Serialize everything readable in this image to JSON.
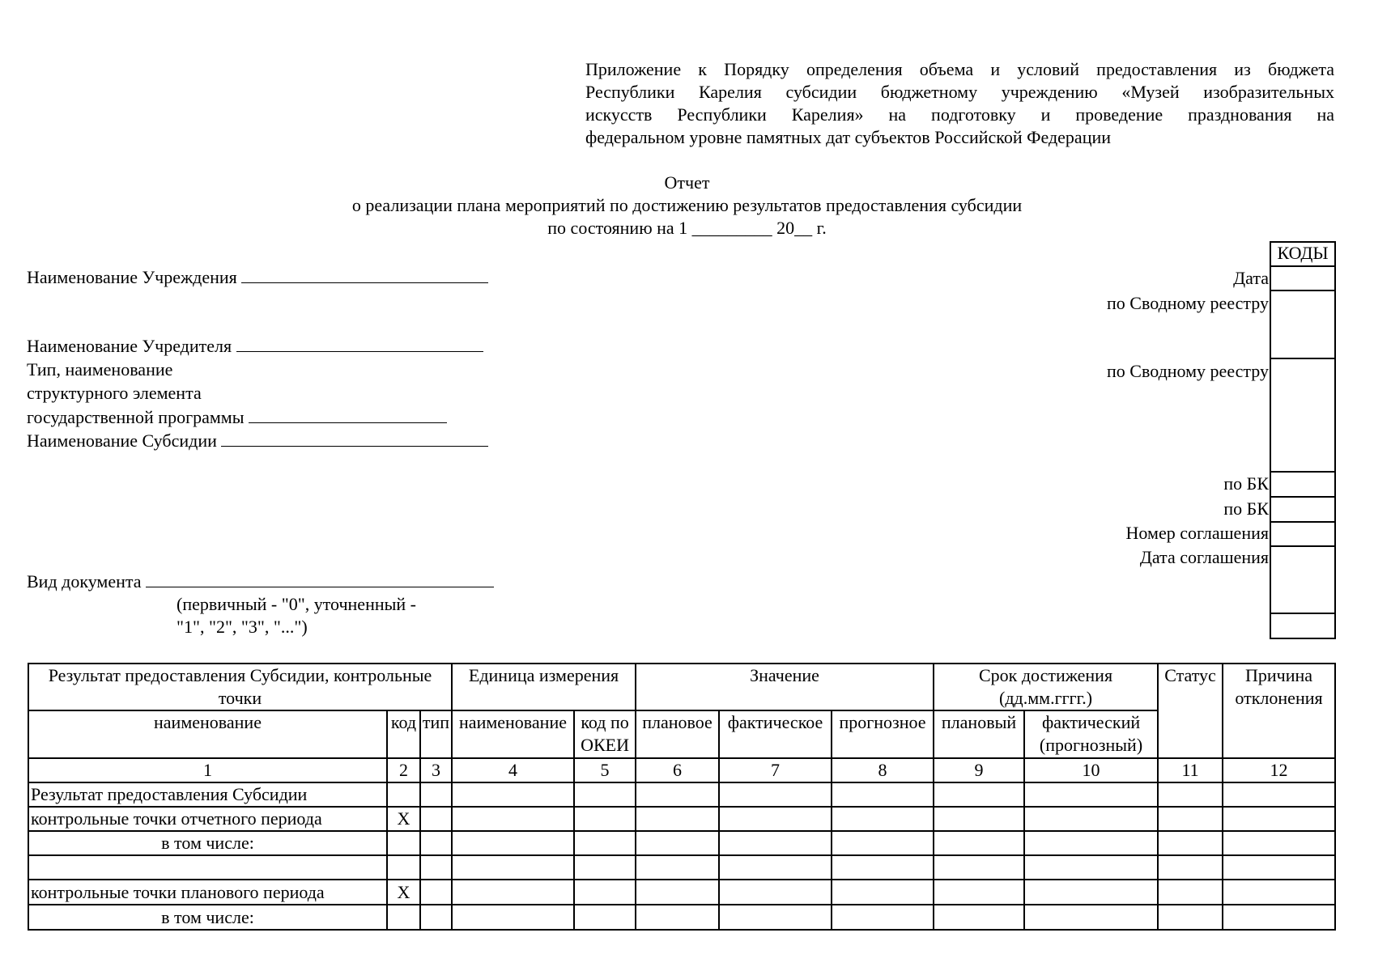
{
  "appendix_lines": [
    "Приложение к Порядку определения объема и условий предоставления из бюджета",
    "Республики Карелия субсидии бюджетному учреждению «Музей изобразительных",
    "искусств Республики Карелия» на подготовку и проведение празднования на",
    "федеральном уровне памятных дат субъектов Российской Федерации"
  ],
  "title": {
    "line1": "Отчет",
    "line2": "о реализации плана мероприятий по достижению результатов предоставления субсидии",
    "line3": "по состоянию на 1 _________ 20__ г."
  },
  "fields": {
    "institution": "Наименование Учреждения",
    "founder": "Наименование Учредителя",
    "program_1": "Тип, наименование",
    "program_2": "структурного элемента",
    "program_3": "государственной программы",
    "subsidy": "Наименование Субсидии",
    "doc_type": "Вид документа",
    "doc_type_hint_1": "(первичный - \"0\", уточненный -",
    "doc_type_hint_2": "\"1\", \"2\", \"3\", \"...\")"
  },
  "codes": {
    "header": "КОДЫ",
    "date": "Дата",
    "registry_1": "по Сводному реестру",
    "registry_2": "по Сводному реестру",
    "bk_1": "по БК",
    "bk_2": "по БК",
    "agreement_number": "Номер соглашения",
    "agreement_date": "Дата соглашения"
  },
  "table": {
    "h_result": "Результат предоставления Субсидии, контрольные точки",
    "h_unit": "Единица измерения",
    "h_value": "Значение",
    "h_deadline": "Срок достижения (дд.мм.гггг.)",
    "h_status": "Статус",
    "h_reason": "Причина отклонения",
    "sub": [
      "наименование",
      "код",
      "тип",
      "наименование",
      "код по ОКЕИ",
      "плановое",
      "фактическое",
      "прогнозное",
      "плановый",
      "фактический (прогнозный)"
    ],
    "numbers": [
      "1",
      "2",
      "3",
      "4",
      "5",
      "6",
      "7",
      "8",
      "9",
      "10",
      "11",
      "12"
    ],
    "rows": [
      {
        "name": "Результат предоставления Субсидии",
        "code": "",
        "align": "l"
      },
      {
        "name": "контрольные точки отчетного периода",
        "code": "X",
        "align": "l"
      },
      {
        "name": "в том числе:",
        "code": "",
        "align": "c"
      },
      {
        "name": "",
        "code": "",
        "align": "c"
      },
      {
        "name": "контрольные точки планового периода",
        "code": "X",
        "align": "l"
      },
      {
        "name": "в том числе:",
        "code": "",
        "align": "c"
      }
    ]
  }
}
